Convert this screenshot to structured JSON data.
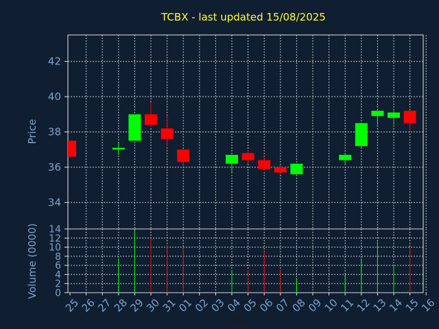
{
  "chart_data": [
    {
      "type": "candlestick",
      "title": "TCBX - last updated 15/08/2025",
      "ylabel": "Price",
      "ylim": [
        32.5,
        43.5
      ],
      "yticks": [
        34,
        36,
        38,
        40,
        42
      ],
      "grid": true,
      "colors": {
        "up": "#00ff00",
        "down": "#ff0000"
      },
      "categories": [
        "25",
        "26",
        "27",
        "28",
        "29",
        "30",
        "31",
        "01",
        "02",
        "03",
        "04",
        "05",
        "06",
        "07",
        "08",
        "09",
        "10",
        "11",
        "12",
        "13",
        "14",
        "15",
        "16"
      ],
      "candles": [
        {
          "day": "25",
          "open": 37.5,
          "high": 37.5,
          "low": 36.6,
          "close": 36.6
        },
        {
          "day": "28",
          "open": 37.0,
          "high": 37.4,
          "low": 36.7,
          "close": 37.1
        },
        {
          "day": "29",
          "open": 37.5,
          "high": 39.0,
          "low": 37.5,
          "close": 39.0
        },
        {
          "day": "30",
          "open": 39.0,
          "high": 39.7,
          "low": 38.3,
          "close": 38.4
        },
        {
          "day": "31",
          "open": 38.2,
          "high": 38.9,
          "low": 37.2,
          "close": 37.6
        },
        {
          "day": "01",
          "open": 37.0,
          "high": 37.0,
          "low": 36.0,
          "close": 36.3
        },
        {
          "day": "04",
          "open": 36.2,
          "high": 36.7,
          "low": 35.7,
          "close": 36.7
        },
        {
          "day": "05",
          "open": 36.8,
          "high": 37.0,
          "low": 36.2,
          "close": 36.4
        },
        {
          "day": "06",
          "open": 36.4,
          "high": 36.6,
          "low": 35.8,
          "close": 35.9
        },
        {
          "day": "07",
          "open": 36.0,
          "high": 36.1,
          "low": 35.6,
          "close": 35.7
        },
        {
          "day": "08",
          "open": 35.6,
          "high": 36.2,
          "low": 35.6,
          "close": 36.2
        },
        {
          "day": "11",
          "open": 36.4,
          "high": 36.8,
          "low": 36.2,
          "close": 36.7
        },
        {
          "day": "12",
          "open": 37.2,
          "high": 38.5,
          "low": 37.1,
          "close": 38.5
        },
        {
          "day": "13",
          "open": 38.9,
          "high": 39.2,
          "low": 38.4,
          "close": 39.2
        },
        {
          "day": "14",
          "open": 38.8,
          "high": 39.2,
          "low": 38.4,
          "close": 39.1
        },
        {
          "day": "15",
          "open": 39.2,
          "high": 39.2,
          "low": 38.0,
          "close": 38.5
        }
      ]
    },
    {
      "type": "bar",
      "ylabel": "Volume (0000)",
      "xlabel": "Day",
      "ylim": [
        0,
        14
      ],
      "yticks": [
        0,
        2,
        4,
        6,
        8,
        10,
        12,
        14
      ],
      "grid": true,
      "categories": [
        "25",
        "26",
        "27",
        "28",
        "29",
        "30",
        "31",
        "01",
        "02",
        "03",
        "04",
        "05",
        "06",
        "07",
        "08",
        "09",
        "10",
        "11",
        "12",
        "13",
        "14",
        "15",
        "16"
      ],
      "bars": [
        {
          "day": "28",
          "value": 7.5,
          "direction": "up"
        },
        {
          "day": "29",
          "value": 13.8,
          "direction": "up"
        },
        {
          "day": "30",
          "value": 12.0,
          "direction": "down"
        },
        {
          "day": "31",
          "value": 10.5,
          "direction": "down"
        },
        {
          "day": "01",
          "value": 9.8,
          "direction": "down"
        },
        {
          "day": "04",
          "value": 5.0,
          "direction": "up"
        },
        {
          "day": "05",
          "value": 5.0,
          "direction": "down"
        },
        {
          "day": "06",
          "value": 9.0,
          "direction": "down"
        },
        {
          "day": "07",
          "value": 5.0,
          "direction": "down"
        },
        {
          "day": "08",
          "value": 3.0,
          "direction": "up"
        },
        {
          "day": "11",
          "value": 4.0,
          "direction": "up"
        },
        {
          "day": "12",
          "value": 7.5,
          "direction": "up"
        },
        {
          "day": "13",
          "value": 11.2,
          "direction": "up"
        },
        {
          "day": "14",
          "value": 6.0,
          "direction": "up"
        },
        {
          "day": "15",
          "value": 10.0,
          "direction": "down"
        }
      ]
    }
  ]
}
